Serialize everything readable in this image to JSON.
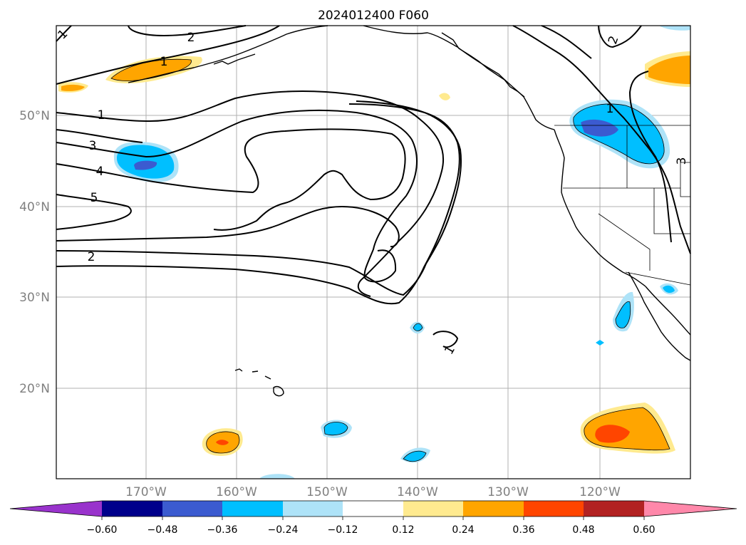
{
  "title": "2024012400 F060",
  "lat_labels": [
    "50°N",
    "40°N",
    "30°N",
    "20°N"
  ],
  "lon_labels": [
    "170°W",
    "160°W",
    "150°W",
    "140°W",
    "130°W",
    "120°W"
  ],
  "contour_labels": [
    "1",
    "2",
    "1",
    "1",
    "3",
    "4",
    "5",
    "2",
    "1",
    "1",
    "2",
    "3"
  ],
  "colorbar": {
    "ticks": [
      "−0.60",
      "−0.48",
      "−0.36",
      "−0.24",
      "−0.12",
      "0.12",
      "0.24",
      "0.36",
      "0.48",
      "0.60"
    ],
    "colors": {
      "under": "#9933cc",
      "c1": "#00008b",
      "c2": "#3b5bd0",
      "c3": "#00bfff",
      "c4": "#aee3f8",
      "c5": "#ffffff",
      "c6": "#ffea8f",
      "c7": "#ffa500",
      "c8": "#ff4500",
      "c9": "#b22222",
      "over": "#ff88aa"
    }
  }
}
